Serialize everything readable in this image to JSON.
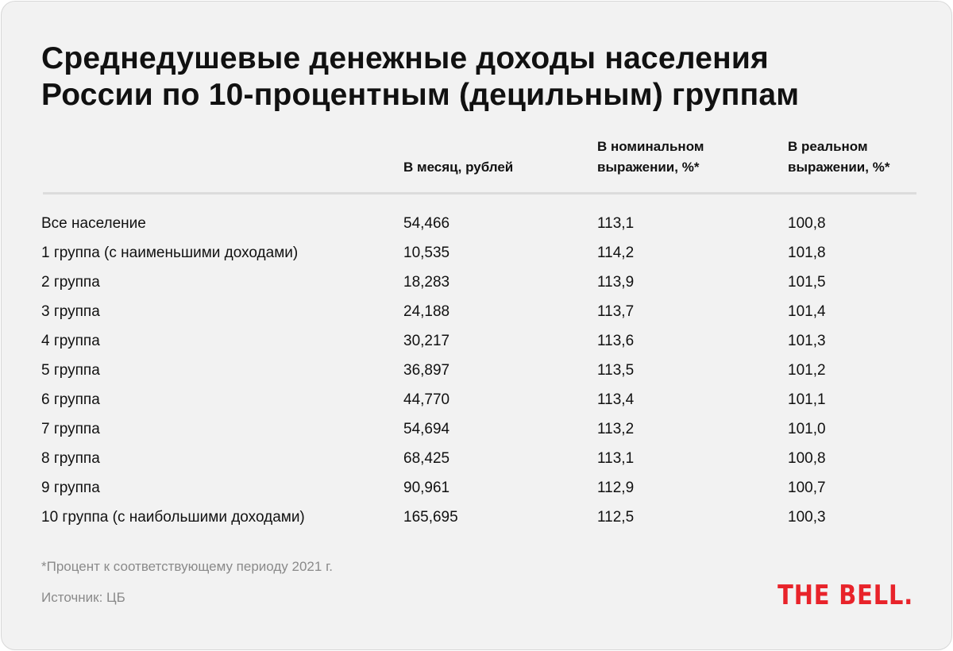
{
  "header": {
    "title_lines": [
      "Среднедушевые денежные доходы населения",
      "России по 10-процентным (децильным) группам"
    ]
  },
  "table": {
    "columns": [
      [
        "В месяц, рублей"
      ],
      [
        "В номинальном",
        "выражении, %*"
      ],
      [
        "В реальном",
        "выражении, %*"
      ]
    ],
    "rows": [
      [
        "Все население",
        "54,466",
        "113,1",
        "100,8"
      ],
      [
        "1 группа (с наименьшими доходами)",
        "10,535",
        "114,2",
        "101,8"
      ],
      [
        "2 группа",
        "18,283",
        "113,9",
        "101,5"
      ],
      [
        "3 группа",
        "24,188",
        "113,7",
        "101,4"
      ],
      [
        "4 группа",
        "30,217",
        "113,6",
        "101,3"
      ],
      [
        "5 группа",
        "36,897",
        "113,5",
        "101,2"
      ],
      [
        "6 группа",
        "44,770",
        "113,4",
        "101,1"
      ],
      [
        "7 группа",
        "54,694",
        "113,2",
        "101,0"
      ],
      [
        "8 группа",
        "68,425",
        "113,1",
        "100,8"
      ],
      [
        "9 группа",
        "90,961",
        "112,9",
        "100,7"
      ],
      [
        "10 группа (с наибольшими доходами)",
        "165,695",
        "112,5",
        "100,3"
      ]
    ]
  },
  "footer": {
    "footnote": "*Процент к соответствующему периоду 2021 г.",
    "source": "Источник: ЦБ",
    "logo": "THE BELL."
  }
}
